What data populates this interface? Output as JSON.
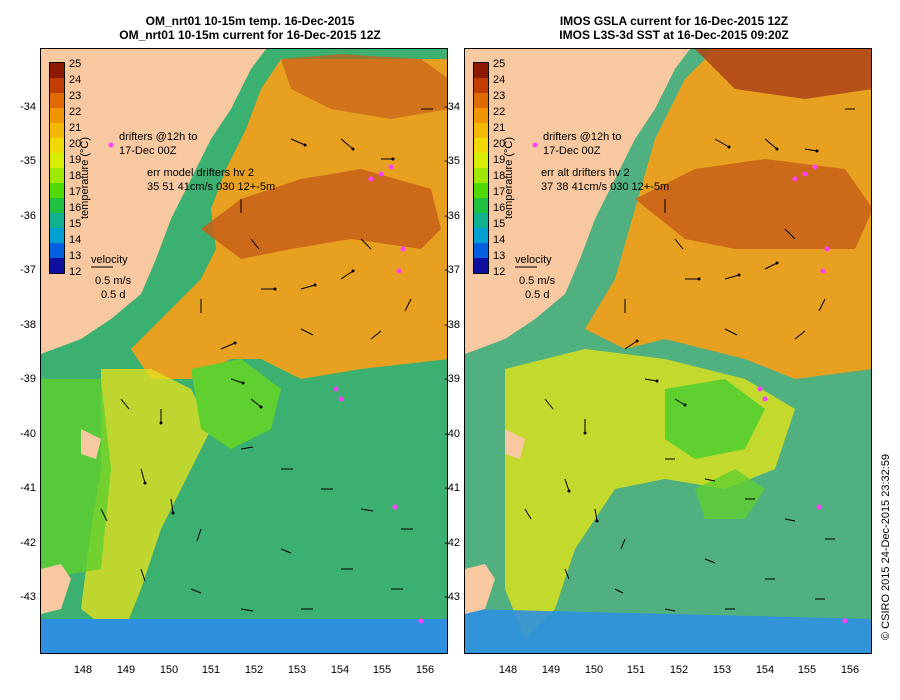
{
  "titles": {
    "left_line1": "OM_nrt01 10-15m temp. 16-Dec-2015",
    "left_line2": "OM_nrt01 10-15m current for 16-Dec-2015 12Z",
    "right_line1": "IMOS GSLA current for 16-Dec-2015 12Z",
    "right_line2": "IMOS L3S-3d SST at 16-Dec-2015 09:20Z"
  },
  "colorbar": {
    "title": "temperature (°C)",
    "labels": [
      "25",
      "24",
      "23",
      "22",
      "21",
      "20",
      "19",
      "18",
      "17",
      "16",
      "15",
      "14",
      "13",
      "12"
    ],
    "colors": [
      "#8b1a00",
      "#c23d00",
      "#e06a00",
      "#f09400",
      "#f5b800",
      "#f0d800",
      "#d8f000",
      "#9ee800",
      "#50d800",
      "#20c040",
      "#10b090",
      "#00a0d0",
      "#0060e0",
      "#1010a0"
    ]
  },
  "annotations": {
    "drifters_line1": "drifters @12h to",
    "drifters_line2": "17-Dec 00Z",
    "left_err_line1": "err model drifters hv 2",
    "left_err_line2": "35 51 41cm/s 030 12+-5m",
    "right_err_line1": "err alt drifters hv 2",
    "right_err_line2": "37 38 41cm/s 030 12+-5m",
    "velocity_label": "velocity",
    "velocity_speed": "0.5 m/s",
    "velocity_time": "0.5 d"
  },
  "axes": {
    "y_ticks": [
      "-34",
      "-35",
      "-36",
      "-37",
      "-38",
      "-39",
      "-40",
      "-41",
      "-42",
      "-43"
    ],
    "x_ticks": [
      "148",
      "149",
      "150",
      "151",
      "152",
      "153",
      "154",
      "155",
      "156"
    ]
  },
  "footer": {
    "stamp": "© CSIRO 2015   24-Dec-2015 23:32:59"
  },
  "map_colors": {
    "land": "#f8c8a0",
    "warm_core": "#c8601a",
    "orange": "#e8a020",
    "yellow": "#e0e020",
    "green": "#60d030",
    "teal": "#40b070",
    "blue": "#3090e0",
    "arrow": "#000000",
    "drifter": "#ff40ff"
  }
}
